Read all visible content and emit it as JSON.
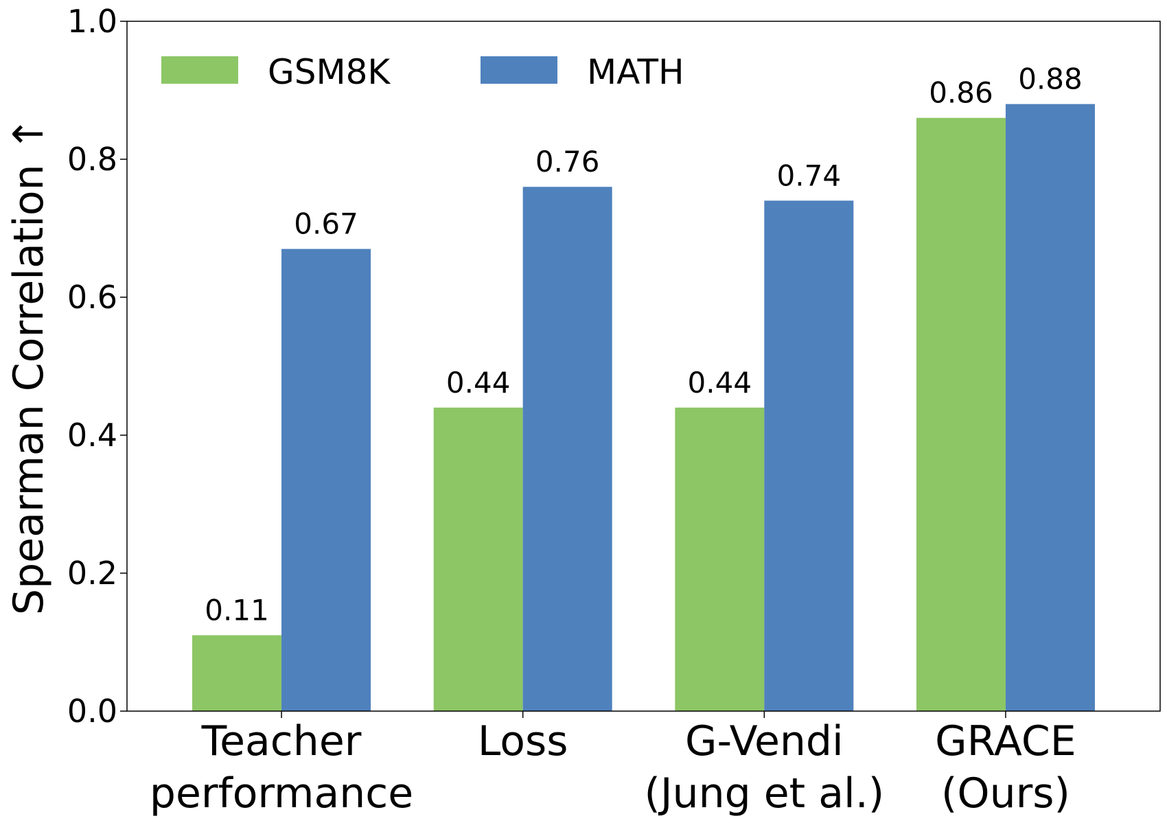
{
  "chart_data": {
    "type": "bar",
    "title": "",
    "xlabel": "",
    "ylabel": "Spearman Correlation ↑",
    "ylim": [
      0.0,
      1.0
    ],
    "yticks": [
      "0.0",
      "0.2",
      "0.4",
      "0.6",
      "0.8",
      "1.0"
    ],
    "grid": false,
    "legend_position": "top-left",
    "categories": [
      [
        "Teacher",
        "performance"
      ],
      [
        "Loss"
      ],
      [
        "G-Vendi",
        "(Jung et al.)"
      ],
      [
        "GRACE",
        "(Ours)"
      ]
    ],
    "series": [
      {
        "name": "GSM8K",
        "color": "#8cc665",
        "values": [
          0.11,
          0.44,
          0.44,
          0.86
        ],
        "labels": [
          "0.11",
          "0.44",
          "0.44",
          "0.86"
        ]
      },
      {
        "name": "MATH",
        "color": "#4f81bd",
        "values": [
          0.67,
          0.76,
          0.74,
          0.88
        ],
        "labels": [
          "0.67",
          "0.76",
          "0.74",
          "0.88"
        ]
      }
    ]
  }
}
